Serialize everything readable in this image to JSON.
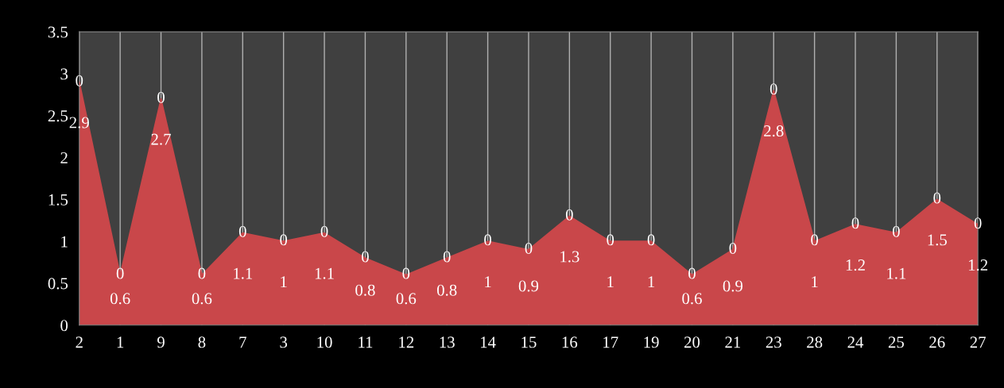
{
  "chart_data": {
    "type": "area",
    "categories": [
      "2",
      "1",
      "9",
      "8",
      "7",
      "3",
      "10",
      "11",
      "12",
      "13",
      "14",
      "15",
      "16",
      "17",
      "19",
      "20",
      "21",
      "23",
      "28",
      "24",
      "25",
      "26",
      "27"
    ],
    "series": [
      {
        "color": "#c9474a",
        "values": [
          2.9,
          0.6,
          2.7,
          0.6,
          1.1,
          1,
          1.1,
          0.8,
          0.6,
          0.8,
          1,
          0.9,
          1.3,
          1,
          1,
          0.6,
          0.9,
          2.8,
          1,
          1.2,
          1.1,
          1.5,
          1.2
        ]
      }
    ],
    "annotations": [
      {
        "text": "0",
        "x": "2",
        "y": 2.9
      },
      {
        "text": "0",
        "x": "1",
        "y": 0.6
      },
      {
        "text": "0",
        "x": "9",
        "y": 2.7
      },
      {
        "text": "0",
        "x": "8",
        "y": 0.6
      },
      {
        "text": "0",
        "x": "7",
        "y": 1.1
      },
      {
        "text": "0",
        "x": "3",
        "y": 1
      },
      {
        "text": "0",
        "x": "10",
        "y": 1.1
      },
      {
        "text": "0",
        "x": "11",
        "y": 0.8
      },
      {
        "text": "0",
        "x": "12",
        "y": 0.6
      },
      {
        "text": "0",
        "x": "13",
        "y": 0.8
      },
      {
        "text": "0",
        "x": "14",
        "y": 1
      },
      {
        "text": "0",
        "x": "15",
        "y": 0.9
      },
      {
        "text": "0",
        "x": "16",
        "y": 1.3
      },
      {
        "text": "0",
        "x": "17",
        "y": 1
      },
      {
        "text": "0",
        "x": "19",
        "y": 1
      },
      {
        "text": "0",
        "x": "20",
        "y": 0.6
      },
      {
        "text": "0",
        "x": "21",
        "y": 0.9
      },
      {
        "text": "0",
        "x": "23",
        "y": 2.8
      },
      {
        "text": "0",
        "x": "28",
        "y": 1
      },
      {
        "text": "0",
        "x": "24",
        "y": 1.2
      },
      {
        "text": "0",
        "x": "25",
        "y": 1.1
      },
      {
        "text": "0",
        "x": "26",
        "y": 1.5
      },
      {
        "text": "0",
        "x": "27",
        "y": 1.2
      }
    ],
    "ylim": [
      0,
      3.5
    ],
    "yticks": [
      0,
      0.5,
      1,
      1.5,
      2,
      2.5,
      3,
      3.5
    ],
    "grid": "x",
    "data_labels": true
  }
}
